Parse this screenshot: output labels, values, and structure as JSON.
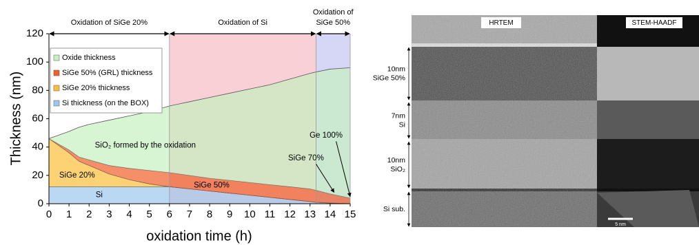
{
  "chart_data": {
    "type": "stacked_area",
    "y_label": "Thickness (nm)",
    "x_label": "oxidation time (h)",
    "xlim": [
      0,
      15
    ],
    "ylim": [
      0,
      120
    ],
    "xticks": [
      0,
      1,
      2,
      3,
      4,
      5,
      6,
      7,
      8,
      9,
      10,
      11,
      12,
      13,
      14,
      15
    ],
    "yticks": [
      0,
      20,
      40,
      60,
      80,
      100,
      120
    ],
    "grid": false,
    "legend": "upper left",
    "x": [
      0,
      1,
      1.5,
      2,
      3,
      4,
      5,
      6,
      7,
      8,
      9,
      10,
      11,
      12,
      13,
      13.3,
      14,
      15
    ],
    "series": [
      {
        "name": "Si thickness (on the BOX)",
        "color": "#9ec8ee",
        "values": [
          12,
          12,
          12,
          12,
          12,
          12,
          12,
          12,
          10.5,
          9,
          7.5,
          6,
          4.5,
          3,
          1.5,
          1,
          0.5,
          0
        ]
      },
      {
        "name": "SiGe 20% thickness",
        "color": "#fbbf3a",
        "values": [
          34,
          24,
          18,
          15,
          9,
          5,
          2,
          0,
          0,
          0,
          0,
          0,
          0,
          0,
          0,
          0,
          0,
          0
        ]
      },
      {
        "name": "SiGe 50% (GRL) thickness",
        "color": "#f0602a",
        "values": [
          0,
          2,
          3,
          4,
          6,
          8,
          9.5,
          10,
          9.5,
          9,
          9,
          9,
          9,
          9,
          9,
          8.5,
          6.5,
          4
        ]
      },
      {
        "name": "Oxide thickness",
        "color": "#c6f0c0",
        "values": [
          0,
          13,
          21,
          25,
          32,
          37,
          41.5,
          47,
          52,
          57,
          61.5,
          66,
          70.5,
          76,
          81.5,
          83.5,
          88,
          92
        ]
      }
    ],
    "phases": [
      {
        "label": [
          "Oxidation of  SiGe 20%"
        ],
        "start": 0,
        "end": 6,
        "color": "#ffffff"
      },
      {
        "label": [
          "Oxidation of  Si"
        ],
        "start": 6,
        "end": 13.3,
        "color": "#f9d0d6"
      },
      {
        "label": [
          "Oxidation of",
          "SiGe 50%"
        ],
        "start": 13.3,
        "end": 15,
        "color": "#d6d6f6"
      }
    ],
    "annotations": [
      "SiO₂ formed by the oxidation",
      "SiGe 20%",
      "Si",
      "SiGe 50%",
      "SiGe 70%",
      "Ge 100%"
    ]
  },
  "image_panel": {
    "panels": [
      "HRTEM",
      "STEM-HAADF"
    ],
    "layers": [
      [
        "10nm",
        "SiGe 50%"
      ],
      [
        "7nm",
        "Si"
      ],
      [
        "10nm",
        "SiO₂"
      ],
      [
        "Si sub."
      ]
    ],
    "scale_bar": "5 nm"
  }
}
